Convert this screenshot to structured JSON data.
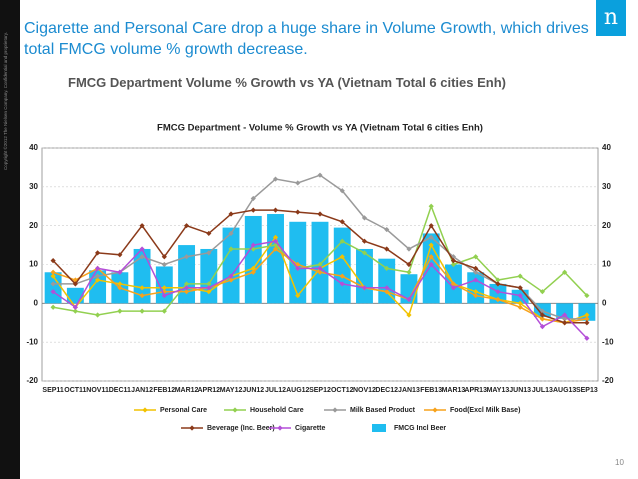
{
  "title": "Cigarette and Personal Care drop a huge share in Volume Growth, which drives total FMCG volume % growth decrease.",
  "subtitle": "FMCG Department Volume % Growth vs YA (Vietnam Total 6 cities Enh)",
  "copyright": "Copyright ©2012 The Nielsen Company. Confidential and proprietary.",
  "logo": "n",
  "page_number": "10",
  "chart_data": {
    "type": "bar",
    "title": "FMCG Department - Volume % Growth vs YA (Vietnam Total 6 cities Enh)",
    "categories": [
      "SEP11",
      "OCT11",
      "NOV11",
      "DEC11",
      "JAN12",
      "FEB12",
      "MAR12",
      "APR12",
      "MAY12",
      "JUN12",
      "JUL12",
      "AUG12",
      "SEP12",
      "OCT12",
      "NOV12",
      "DEC12",
      "JAN13",
      "FEB13",
      "MAR13",
      "APR13",
      "MAY13",
      "JUN13",
      "JUL13",
      "AUG13",
      "SEP13"
    ],
    "series": [
      {
        "name": "Personal Care",
        "type": "line",
        "color": "#f2c200",
        "values": [
          7,
          -1,
          6,
          5,
          4,
          4,
          4,
          3,
          7,
          9,
          17,
          2,
          9,
          12,
          4,
          3,
          -3,
          15,
          5,
          3,
          1,
          0,
          -4,
          -5,
          -3
        ]
      },
      {
        "name": "Household Care",
        "type": "line",
        "color": "#92d050",
        "values": [
          -1,
          -2,
          -3,
          -2,
          -2,
          -2,
          5,
          5,
          14,
          14,
          15,
          9,
          10,
          16,
          13,
          9,
          8,
          25,
          10,
          12,
          6,
          7,
          3,
          8,
          2
        ]
      },
      {
        "name": "Milk Based Product",
        "type": "line",
        "color": "#9a9a9a",
        "values": [
          5,
          5,
          7,
          8,
          12,
          10,
          12,
          13,
          18,
          27,
          32,
          31,
          33,
          29,
          22,
          19,
          14,
          17,
          12,
          8,
          5,
          4,
          -2,
          -4,
          -4
        ]
      },
      {
        "name": "Food(Excl Milk Base)",
        "type": "line",
        "color": "#f7a21b",
        "values": [
          8,
          6,
          9,
          4,
          2,
          3,
          3,
          4,
          6,
          8,
          14,
          10,
          8,
          7,
          4,
          3,
          1,
          12,
          5,
          2,
          1,
          -1,
          -4,
          -5,
          -4
        ]
      },
      {
        "name": "Beverage (Inc. Beer)",
        "type": "line",
        "color": "#8b3a1a",
        "values": [
          11,
          5,
          13,
          12.5,
          20,
          12,
          20,
          18,
          23,
          24,
          24,
          23.5,
          23,
          21,
          16,
          14,
          10,
          20,
          11,
          9,
          5,
          4,
          -3,
          -5,
          -5
        ]
      },
      {
        "name": "Cigarette",
        "type": "line",
        "color": "#b44fd8",
        "values": [
          3,
          -1,
          9,
          8,
          14,
          2,
          4,
          4,
          7,
          15,
          16,
          9,
          9,
          5,
          4,
          4,
          1,
          10,
          4,
          6,
          3,
          2,
          -6,
          -3,
          -9
        ]
      },
      {
        "name": "FMCG Incl Beer",
        "type": "bar",
        "color": "#1fbdf0",
        "values": [
          8,
          4,
          8.5,
          8,
          14,
          9.5,
          15,
          14,
          19.5,
          22.5,
          23,
          21,
          21,
          19.5,
          14,
          11.5,
          7.5,
          18,
          10,
          8,
          5,
          3.5,
          -3.5,
          -4,
          -4.5
        ]
      }
    ],
    "ylim": [
      -20,
      40
    ],
    "yticks": [
      40,
      30,
      20,
      10,
      0,
      -10,
      -20
    ],
    "grid": true
  }
}
